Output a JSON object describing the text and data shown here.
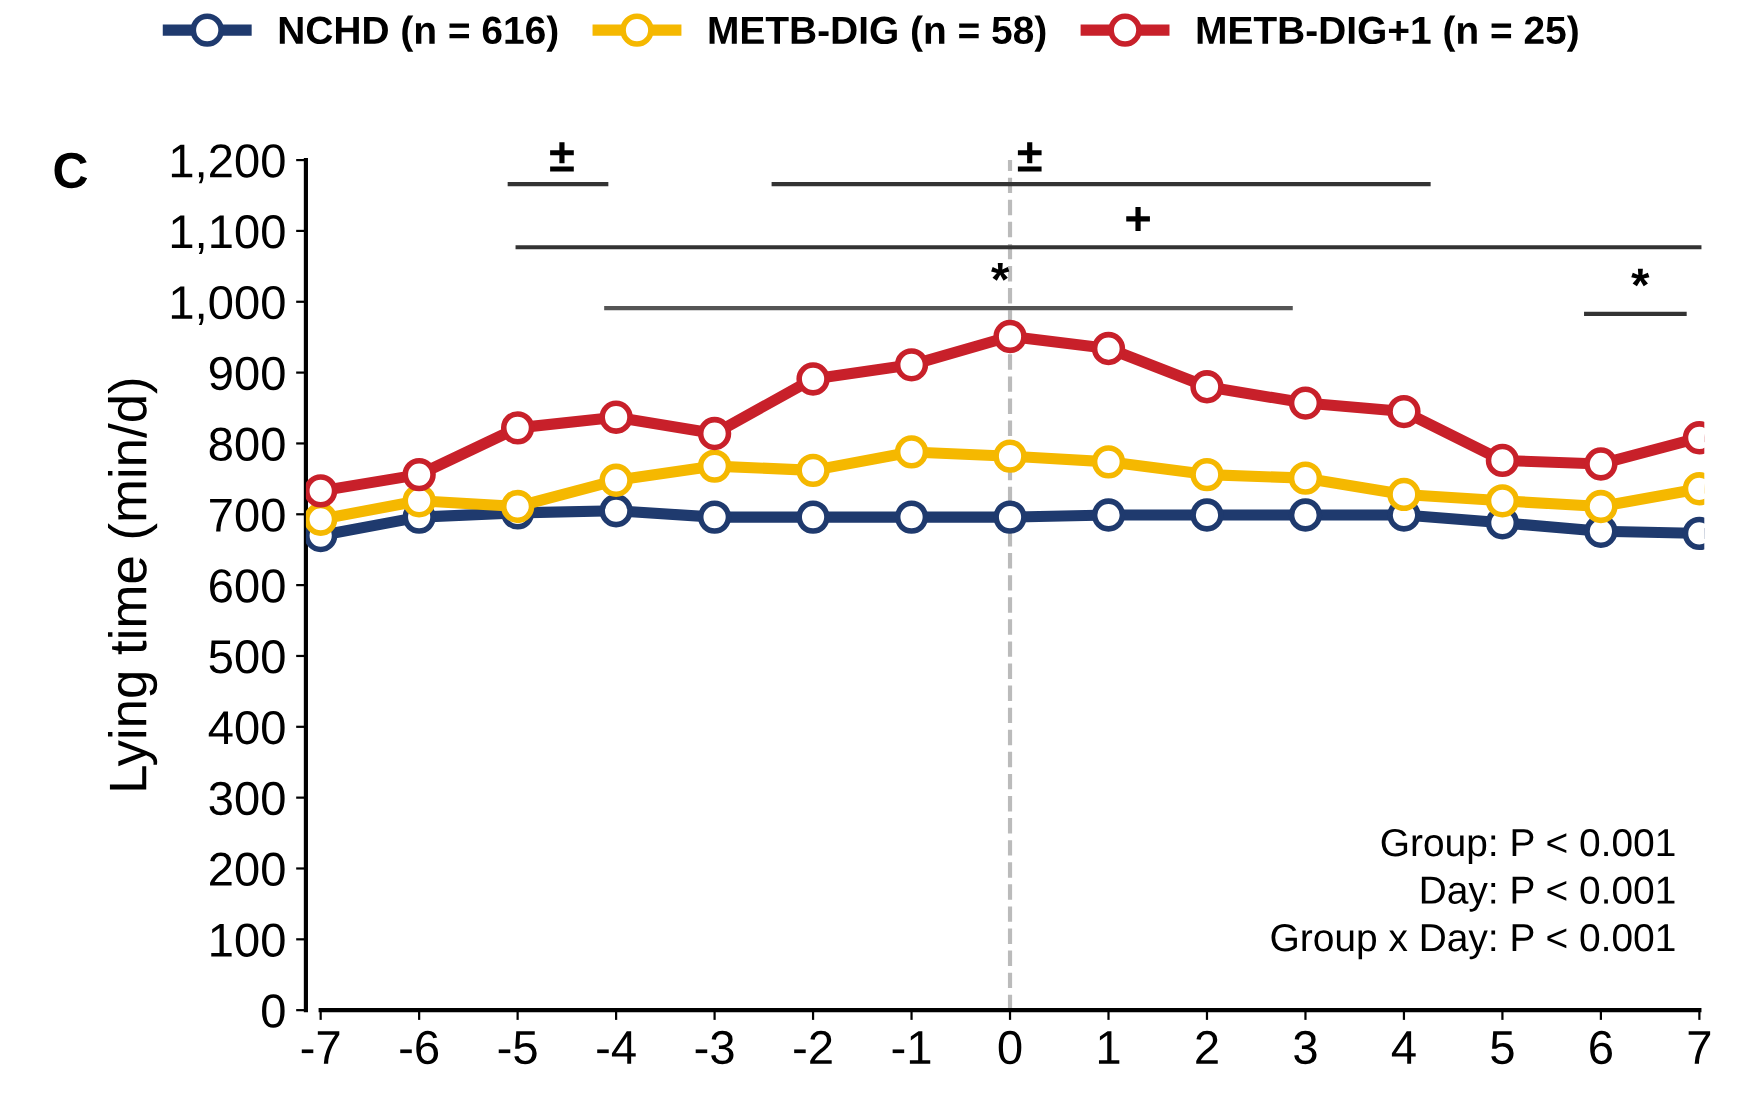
{
  "chart_data": {
    "type": "line",
    "ylabel": "Lying time (min/d)",
    "x": [
      -7,
      -6,
      -5,
      -4,
      -3,
      -2,
      -1,
      0,
      1,
      2,
      3,
      4,
      5,
      6,
      7
    ],
    "xlim": [
      -7,
      7
    ],
    "xticks": [
      -7,
      -6,
      -5,
      -4,
      -3,
      -2,
      -1,
      0,
      1,
      2,
      3,
      4,
      5,
      6,
      7
    ],
    "ylim": [
      0,
      1200
    ],
    "yticks": [
      0,
      100,
      200,
      300,
      400,
      500,
      600,
      700,
      800,
      900,
      {
        "value": 1000,
        "label": "1,000"
      },
      {
        "value": 1100,
        "label": "1,100"
      },
      {
        "value": 1200,
        "label": "1,200"
      }
    ],
    "legend": "top",
    "marker": "circle",
    "line_style": "solid",
    "grid": false,
    "series": [
      {
        "name": "NCHD (n = 616)",
        "color": "#1f3a6e",
        "values": [
          670,
          696,
          702,
          705,
          696,
          696,
          696,
          696,
          699,
          699,
          699,
          699,
          688,
          676,
          673
        ]
      },
      {
        "name": "METB-DIG (n = 58)",
        "color": "#f5b800",
        "values": [
          693,
          719,
          711,
          748,
          768,
          762,
          788,
          782,
          774,
          756,
          751,
          728,
          719,
          711,
          736
        ]
      },
      {
        "name": "METB-DIG+1 (n = 25)",
        "color": "#c8202a",
        "values": [
          733,
          756,
          822,
          837,
          814,
          891,
          911,
          951,
          934,
          880,
          857,
          845,
          776,
          771,
          808
        ]
      },
      {
        "type": "line",
        "marker": "none",
        "color": "#333333",
        "x": [
          -5.08,
          -4.1
        ],
        "values": [
          1166,
          1166
        ]
      },
      {
        "type": "line",
        "marker": "none",
        "color": "#333333",
        "x": [
          -2.4,
          4.25
        ],
        "values": [
          1166,
          1166
        ]
      },
      {
        "type": "line",
        "marker": "none",
        "color": "#333333",
        "x": [
          -5,
          7
        ],
        "values": [
          1077,
          1077
        ]
      },
      {
        "type": "line",
        "marker": "none",
        "color": "#555555",
        "x": [
          -4.1,
          2.85
        ],
        "values": [
          991,
          991
        ]
      },
      {
        "type": "line",
        "marker": "none",
        "color": "#333333",
        "x": [
          5.85,
          6.85
        ],
        "values": [
          983,
          983
        ]
      }
    ],
    "ref_lines": [
      {
        "axis": "x",
        "value": 0,
        "color": "#bbbbbb",
        "line_style": "dashed"
      }
    ],
    "annotations": [
      "C",
      {
        "text": "±",
        "x": -4.55,
        "y": 1166
      },
      {
        "text": "±",
        "x": 0.2,
        "y": 1166
      },
      {
        "text": "+",
        "x": 1.3,
        "y": 1077
      },
      {
        "text": "*",
        "x": -0.1,
        "y": 991
      },
      {
        "text": "*",
        "x": 6.4,
        "y": 983
      },
      "Group: P < 0.001\nDay: P < 0.001\nGroup x Day: P < 0.001"
    ]
  }
}
